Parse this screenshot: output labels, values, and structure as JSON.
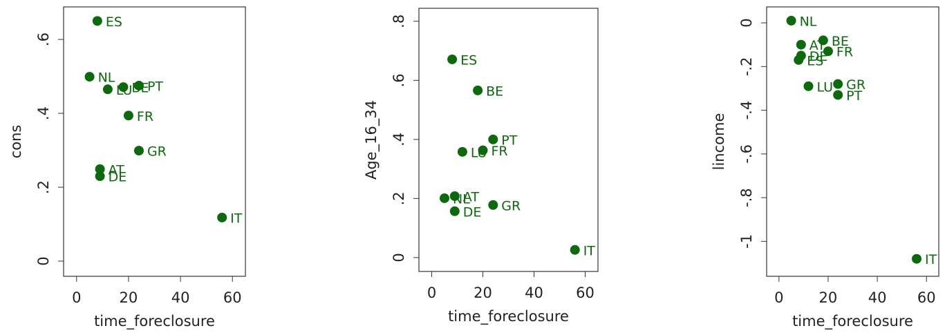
{
  "chart_data": [
    {
      "type": "scatter",
      "color": "#0b6a0b",
      "xlabel": "time_foreclosure",
      "ylabel": "cons",
      "labels": [
        "ES",
        "NL",
        "LU",
        "BE",
        "PT",
        "FR",
        "GR",
        "AT",
        "DE",
        "IT"
      ],
      "x": [
        8,
        5,
        12,
        18,
        24,
        20,
        24,
        9,
        9,
        56
      ],
      "values": [
        0.65,
        0.499,
        0.465,
        0.471,
        0.475,
        0.394,
        0.299,
        0.249,
        0.23,
        0.118
      ],
      "xlim": [
        -5,
        65
      ],
      "ylim": [
        -0.041,
        0.688
      ],
      "xticks": [
        0,
        20,
        40,
        60
      ],
      "yticks": [
        0,
        {
          "value": 0.2,
          "label": ".2"
        },
        {
          "value": 0.4,
          "label": ".4"
        },
        {
          "value": 0.6,
          "label": ".6"
        }
      ]
    },
    {
      "type": "scatter",
      "color": "#0b6a0b",
      "xlabel": "time_foreclosure",
      "ylabel": "Age_16_34",
      "labels": [
        "ES",
        "BE",
        "PT",
        "LU",
        "FR",
        "NL",
        "AT",
        "DE",
        "GR",
        "IT"
      ],
      "x": [
        8,
        18,
        24,
        12,
        20,
        5,
        9,
        9,
        24,
        56
      ],
      "values": [
        0.671,
        0.566,
        0.4,
        0.358,
        0.363,
        0.201,
        0.208,
        0.157,
        0.178,
        0.026
      ],
      "xlim": [
        -5,
        65
      ],
      "ylim": [
        -0.047,
        0.844
      ],
      "xticks": [
        0,
        20,
        40,
        60
      ],
      "yticks": [
        0,
        {
          "value": 0.2,
          "label": ".2"
        },
        {
          "value": 0.4,
          "label": ".4"
        },
        {
          "value": 0.6,
          "label": ".6"
        },
        {
          "value": 0.8,
          "label": ".8"
        }
      ]
    },
    {
      "type": "scatter",
      "color": "#0b6a0b",
      "xlabel": "time_foreclosure",
      "ylabel": "lincome",
      "labels": [
        "NL",
        "BE",
        "AT",
        "FR",
        "DE",
        "ES",
        "LU",
        "GR",
        "PT",
        "IT"
      ],
      "x": [
        5,
        18,
        9,
        20,
        9,
        8,
        12,
        24,
        24,
        56
      ],
      "values": [
        0.01,
        -0.08,
        -0.1,
        -0.13,
        -0.15,
        -0.17,
        -0.29,
        -0.28,
        -0.33,
        -1.08
      ],
      "xlim": [
        -5,
        65
      ],
      "ylim": [
        -1.16,
        0.073
      ],
      "xticks": [
        0,
        20,
        40,
        60
      ],
      "yticks": [
        0,
        {
          "value": -0.2,
          "label": "-.2"
        },
        {
          "value": -0.4,
          "label": "-.4"
        },
        {
          "value": -0.6,
          "label": "-.6"
        },
        {
          "value": -0.8,
          "label": "-.8"
        },
        {
          "value": -1,
          "label": "-1"
        }
      ]
    }
  ]
}
